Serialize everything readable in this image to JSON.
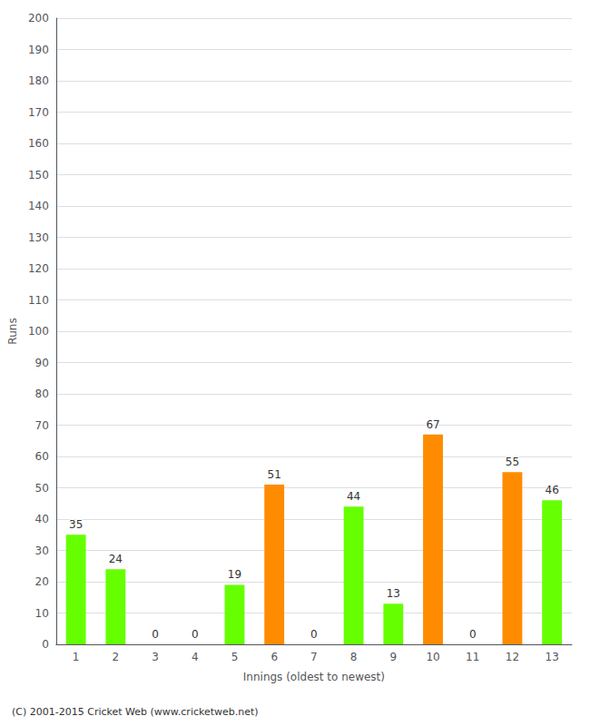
{
  "chart_data": {
    "type": "bar",
    "xlabel": "Innings (oldest to newest)",
    "ylabel": "Runs",
    "categories": [
      1,
      2,
      3,
      4,
      5,
      6,
      7,
      8,
      9,
      10,
      11,
      12,
      13
    ],
    "values": [
      35,
      24,
      0,
      0,
      19,
      51,
      0,
      44,
      13,
      67,
      0,
      55,
      46
    ],
    "colors": [
      "#66ff00",
      "#66ff00",
      "#66ff00",
      "#66ff00",
      "#66ff00",
      "#ff8c00",
      "#66ff00",
      "#66ff00",
      "#66ff00",
      "#ff8c00",
      "#66ff00",
      "#ff8c00",
      "#66ff00"
    ],
    "ylim": [
      0,
      200
    ],
    "yticks": [
      0,
      10,
      20,
      30,
      40,
      50,
      60,
      70,
      80,
      90,
      100,
      110,
      120,
      130,
      140,
      150,
      160,
      170,
      180,
      190,
      200
    ],
    "grid": true,
    "data_labels": true,
    "annotations": [
      "(C) 2001-2015 Cricket Web (www.cricketweb.net)"
    ]
  }
}
